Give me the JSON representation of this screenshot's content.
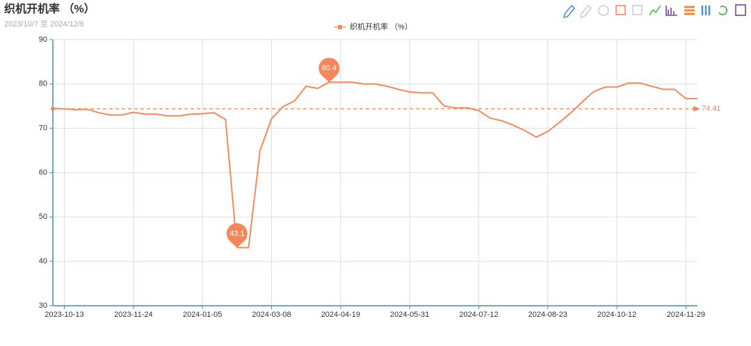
{
  "chart_data": {
    "type": "line",
    "title": "织机开机率 （%）",
    "subtitle": "2023/10/7 至 2024/12/6",
    "categories": [
      null,
      "2023-10-13",
      null,
      null,
      null,
      null,
      null,
      "2023-11-24",
      null,
      null,
      null,
      null,
      null,
      "2024-01-05",
      null,
      null,
      null,
      null,
      null,
      "2024-03-08",
      null,
      null,
      null,
      null,
      null,
      "2024-04-19",
      null,
      null,
      null,
      null,
      null,
      "2024-05-31",
      null,
      null,
      null,
      null,
      null,
      "2024-07-12",
      null,
      null,
      null,
      null,
      null,
      "2024-08-23",
      null,
      null,
      null,
      null,
      null,
      "2024-10-12",
      null,
      null,
      null,
      null,
      null,
      "2024-11-29",
      null
    ],
    "series": [
      {
        "name": "织机开机率 （%）",
        "color": "#f5875a",
        "values": [
          74.5,
          74.4,
          74.2,
          74.3,
          73.5,
          73.0,
          73.0,
          73.6,
          73.2,
          73.2,
          72.8,
          72.8,
          73.2,
          73.3,
          73.5,
          72.0,
          43.1,
          43.1,
          65.0,
          72.2,
          74.9,
          76.2,
          79.5,
          79.0,
          80.4,
          80.4,
          80.4,
          80.0,
          80.0,
          79.5,
          78.8,
          78.2,
          78.0,
          78.0,
          75.0,
          74.6,
          74.6,
          74.0,
          72.3,
          71.7,
          70.7,
          69.5,
          68.0,
          69.3,
          71.3,
          73.5,
          76.0,
          78.3,
          79.3,
          79.3,
          80.2,
          80.2,
          79.5,
          78.8,
          78.8,
          76.7,
          76.7
        ]
      }
    ],
    "average": 74.41,
    "ylim": [
      30,
      90
    ],
    "yticks": [
      30,
      40,
      50,
      60,
      70,
      80,
      90
    ],
    "grid": true,
    "legend": "top"
  }
}
